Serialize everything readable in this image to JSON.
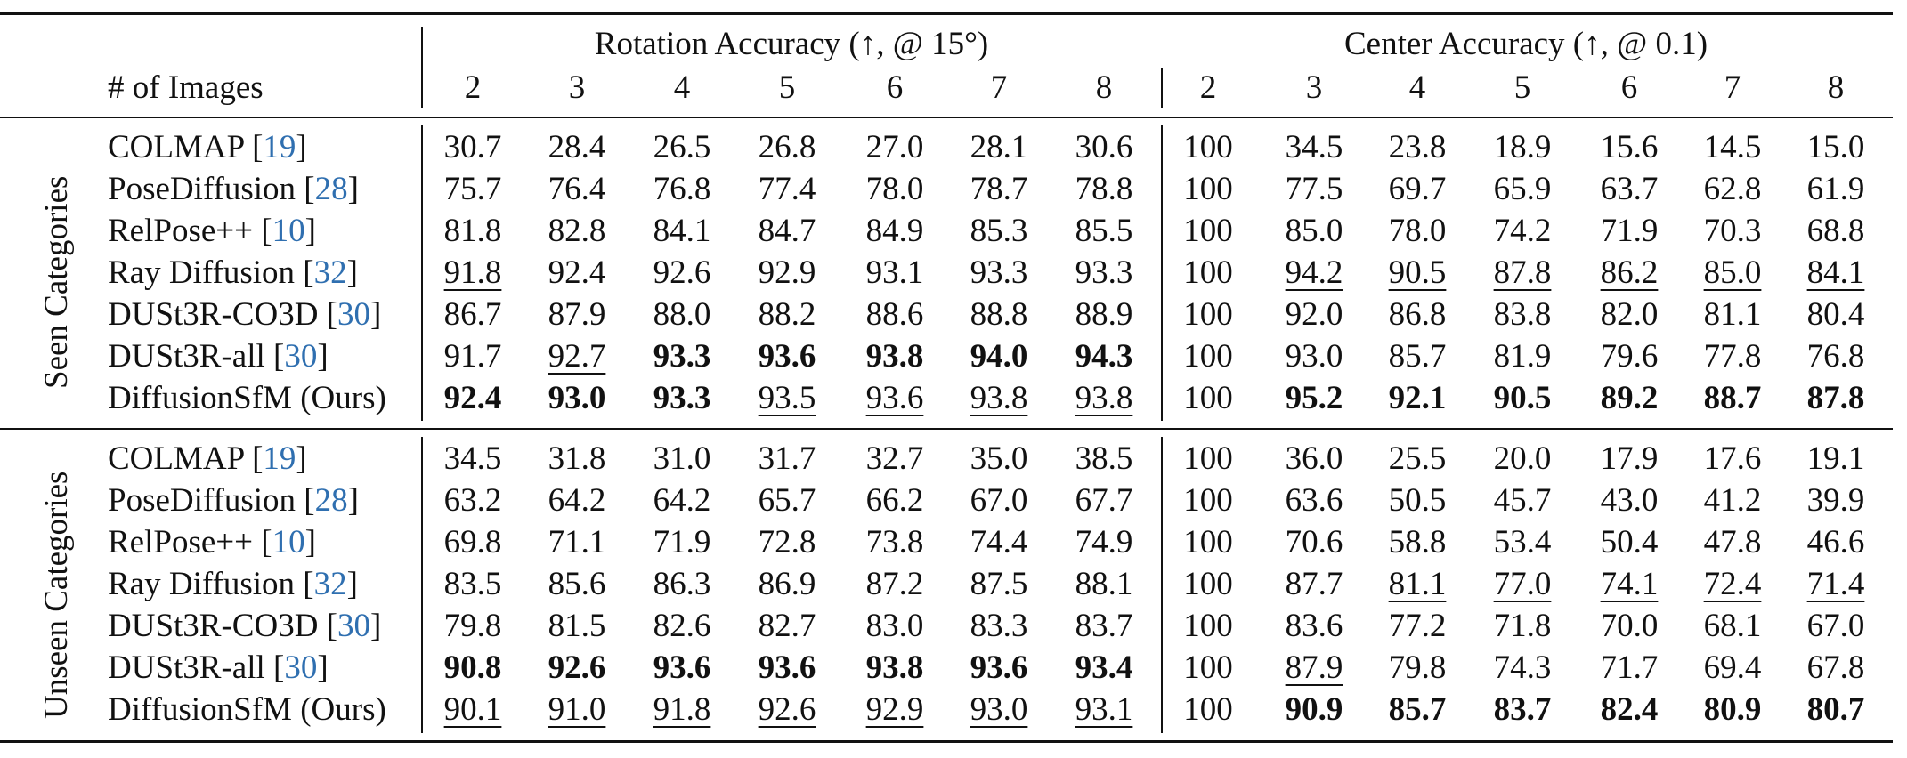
{
  "table": {
    "header": {
      "row_label": "# of Images",
      "groups": [
        {
          "title": "Rotation Accuracy (↑, @ 15°)",
          "columns": [
            "2",
            "3",
            "4",
            "5",
            "6",
            "7",
            "8"
          ]
        },
        {
          "title": "Center Accuracy (↑, @ 0.1)",
          "columns": [
            "2",
            "3",
            "4",
            "5",
            "6",
            "7",
            "8"
          ]
        }
      ]
    },
    "sections": [
      {
        "label": "Seen Categories",
        "rows": [
          {
            "method": "COLMAP [",
            "ref": "19",
            "close": "]",
            "cells": [
              [
                "30.7",
                ""
              ],
              [
                "28.4",
                ""
              ],
              [
                "26.5",
                ""
              ],
              [
                "26.8",
                ""
              ],
              [
                "27.0",
                ""
              ],
              [
                "28.1",
                ""
              ],
              [
                "30.6",
                ""
              ],
              [
                "100",
                ""
              ],
              [
                "34.5",
                ""
              ],
              [
                "23.8",
                ""
              ],
              [
                "18.9",
                ""
              ],
              [
                "15.6",
                ""
              ],
              [
                "14.5",
                ""
              ],
              [
                "15.0",
                ""
              ]
            ]
          },
          {
            "method": "PoseDiffusion [",
            "ref": "28",
            "close": "]",
            "cells": [
              [
                "75.7",
                ""
              ],
              [
                "76.4",
                ""
              ],
              [
                "76.8",
                ""
              ],
              [
                "77.4",
                ""
              ],
              [
                "78.0",
                ""
              ],
              [
                "78.7",
                ""
              ],
              [
                "78.8",
                ""
              ],
              [
                "100",
                ""
              ],
              [
                "77.5",
                ""
              ],
              [
                "69.7",
                ""
              ],
              [
                "65.9",
                ""
              ],
              [
                "63.7",
                ""
              ],
              [
                "62.8",
                ""
              ],
              [
                "61.9",
                ""
              ]
            ]
          },
          {
            "method": "RelPose++ [",
            "ref": "10",
            "close": "]",
            "cells": [
              [
                "81.8",
                ""
              ],
              [
                "82.8",
                ""
              ],
              [
                "84.1",
                ""
              ],
              [
                "84.7",
                ""
              ],
              [
                "84.9",
                ""
              ],
              [
                "85.3",
                ""
              ],
              [
                "85.5",
                ""
              ],
              [
                "100",
                ""
              ],
              [
                "85.0",
                ""
              ],
              [
                "78.0",
                ""
              ],
              [
                "74.2",
                ""
              ],
              [
                "71.9",
                ""
              ],
              [
                "70.3",
                ""
              ],
              [
                "68.8",
                ""
              ]
            ]
          },
          {
            "method": "Ray Diffusion [",
            "ref": "32",
            "close": "]",
            "cells": [
              [
                "91.8",
                "u"
              ],
              [
                "92.4",
                ""
              ],
              [
                "92.6",
                ""
              ],
              [
                "92.9",
                ""
              ],
              [
                "93.1",
                ""
              ],
              [
                "93.3",
                ""
              ],
              [
                "93.3",
                ""
              ],
              [
                "100",
                ""
              ],
              [
                "94.2",
                "u"
              ],
              [
                "90.5",
                "u"
              ],
              [
                "87.8",
                "u"
              ],
              [
                "86.2",
                "u"
              ],
              [
                "85.0",
                "u"
              ],
              [
                "84.1",
                "u"
              ]
            ]
          },
          {
            "method": "DUSt3R-CO3D [",
            "ref": "30",
            "close": "]",
            "cells": [
              [
                "86.7",
                ""
              ],
              [
                "87.9",
                ""
              ],
              [
                "88.0",
                ""
              ],
              [
                "88.2",
                ""
              ],
              [
                "88.6",
                ""
              ],
              [
                "88.8",
                ""
              ],
              [
                "88.9",
                ""
              ],
              [
                "100",
                ""
              ],
              [
                "92.0",
                ""
              ],
              [
                "86.8",
                ""
              ],
              [
                "83.8",
                ""
              ],
              [
                "82.0",
                ""
              ],
              [
                "81.1",
                ""
              ],
              [
                "80.4",
                ""
              ]
            ]
          },
          {
            "method": "DUSt3R-all [",
            "ref": "30",
            "close": "]",
            "cells": [
              [
                "91.7",
                ""
              ],
              [
                "92.7",
                "u"
              ],
              [
                "93.3",
                "b"
              ],
              [
                "93.6",
                "b"
              ],
              [
                "93.8",
                "b"
              ],
              [
                "94.0",
                "b"
              ],
              [
                "94.3",
                "b"
              ],
              [
                "100",
                ""
              ],
              [
                "93.0",
                ""
              ],
              [
                "85.7",
                ""
              ],
              [
                "81.9",
                ""
              ],
              [
                "79.6",
                ""
              ],
              [
                "77.8",
                ""
              ],
              [
                "76.8",
                ""
              ]
            ]
          },
          {
            "method": "DiffusionSfM (Ours)",
            "ref": "",
            "close": "",
            "cells": [
              [
                "92.4",
                "b"
              ],
              [
                "93.0",
                "b"
              ],
              [
                "93.3",
                "b"
              ],
              [
                "93.5",
                "u"
              ],
              [
                "93.6",
                "u"
              ],
              [
                "93.8",
                "u"
              ],
              [
                "93.8",
                "u"
              ],
              [
                "100",
                ""
              ],
              [
                "95.2",
                "b"
              ],
              [
                "92.1",
                "b"
              ],
              [
                "90.5",
                "b"
              ],
              [
                "89.2",
                "b"
              ],
              [
                "88.7",
                "b"
              ],
              [
                "87.8",
                "b"
              ]
            ]
          }
        ]
      },
      {
        "label": "Unseen Categories",
        "rows": [
          {
            "method": "COLMAP [",
            "ref": "19",
            "close": "]",
            "cells": [
              [
                "34.5",
                ""
              ],
              [
                "31.8",
                ""
              ],
              [
                "31.0",
                ""
              ],
              [
                "31.7",
                ""
              ],
              [
                "32.7",
                ""
              ],
              [
                "35.0",
                ""
              ],
              [
                "38.5",
                ""
              ],
              [
                "100",
                ""
              ],
              [
                "36.0",
                ""
              ],
              [
                "25.5",
                ""
              ],
              [
                "20.0",
                ""
              ],
              [
                "17.9",
                ""
              ],
              [
                "17.6",
                ""
              ],
              [
                "19.1",
                ""
              ]
            ]
          },
          {
            "method": "PoseDiffusion [",
            "ref": "28",
            "close": "]",
            "cells": [
              [
                "63.2",
                ""
              ],
              [
                "64.2",
                ""
              ],
              [
                "64.2",
                ""
              ],
              [
                "65.7",
                ""
              ],
              [
                "66.2",
                ""
              ],
              [
                "67.0",
                ""
              ],
              [
                "67.7",
                ""
              ],
              [
                "100",
                ""
              ],
              [
                "63.6",
                ""
              ],
              [
                "50.5",
                ""
              ],
              [
                "45.7",
                ""
              ],
              [
                "43.0",
                ""
              ],
              [
                "41.2",
                ""
              ],
              [
                "39.9",
                ""
              ]
            ]
          },
          {
            "method": "RelPose++ [",
            "ref": "10",
            "close": "]",
            "cells": [
              [
                "69.8",
                ""
              ],
              [
                "71.1",
                ""
              ],
              [
                "71.9",
                ""
              ],
              [
                "72.8",
                ""
              ],
              [
                "73.8",
                ""
              ],
              [
                "74.4",
                ""
              ],
              [
                "74.9",
                ""
              ],
              [
                "100",
                ""
              ],
              [
                "70.6",
                ""
              ],
              [
                "58.8",
                ""
              ],
              [
                "53.4",
                ""
              ],
              [
                "50.4",
                ""
              ],
              [
                "47.8",
                ""
              ],
              [
                "46.6",
                ""
              ]
            ]
          },
          {
            "method": "Ray Diffusion [",
            "ref": "32",
            "close": "]",
            "cells": [
              [
                "83.5",
                ""
              ],
              [
                "85.6",
                ""
              ],
              [
                "86.3",
                ""
              ],
              [
                "86.9",
                ""
              ],
              [
                "87.2",
                ""
              ],
              [
                "87.5",
                ""
              ],
              [
                "88.1",
                ""
              ],
              [
                "100",
                ""
              ],
              [
                "87.7",
                ""
              ],
              [
                "81.1",
                "u"
              ],
              [
                "77.0",
                "u"
              ],
              [
                "74.1",
                "u"
              ],
              [
                "72.4",
                "u"
              ],
              [
                "71.4",
                "u"
              ]
            ]
          },
          {
            "method": "DUSt3R-CO3D [",
            "ref": "30",
            "close": "]",
            "cells": [
              [
                "79.8",
                ""
              ],
              [
                "81.5",
                ""
              ],
              [
                "82.6",
                ""
              ],
              [
                "82.7",
                ""
              ],
              [
                "83.0",
                ""
              ],
              [
                "83.3",
                ""
              ],
              [
                "83.7",
                ""
              ],
              [
                "100",
                ""
              ],
              [
                "83.6",
                ""
              ],
              [
                "77.2",
                ""
              ],
              [
                "71.8",
                ""
              ],
              [
                "70.0",
                ""
              ],
              [
                "68.1",
                ""
              ],
              [
                "67.0",
                ""
              ]
            ]
          },
          {
            "method": "DUSt3R-all [",
            "ref": "30",
            "close": "]",
            "cells": [
              [
                "90.8",
                "b"
              ],
              [
                "92.6",
                "b"
              ],
              [
                "93.6",
                "b"
              ],
              [
                "93.6",
                "b"
              ],
              [
                "93.8",
                "b"
              ],
              [
                "93.6",
                "b"
              ],
              [
                "93.4",
                "b"
              ],
              [
                "100",
                ""
              ],
              [
                "87.9",
                "u"
              ],
              [
                "79.8",
                ""
              ],
              [
                "74.3",
                ""
              ],
              [
                "71.7",
                ""
              ],
              [
                "69.4",
                ""
              ],
              [
                "67.8",
                ""
              ]
            ]
          },
          {
            "method": "DiffusionSfM (Ours)",
            "ref": "",
            "close": "",
            "cells": [
              [
                "90.1",
                "u"
              ],
              [
                "91.0",
                "u"
              ],
              [
                "91.8",
                "u"
              ],
              [
                "92.6",
                "u"
              ],
              [
                "92.9",
                "u"
              ],
              [
                "93.0",
                "u"
              ],
              [
                "93.1",
                "u"
              ],
              [
                "100",
                ""
              ],
              [
                "90.9",
                "b"
              ],
              [
                "85.7",
                "b"
              ],
              [
                "83.7",
                "b"
              ],
              [
                "82.4",
                "b"
              ],
              [
                "80.9",
                "b"
              ],
              [
                "80.7",
                "b"
              ]
            ]
          }
        ]
      }
    ]
  }
}
